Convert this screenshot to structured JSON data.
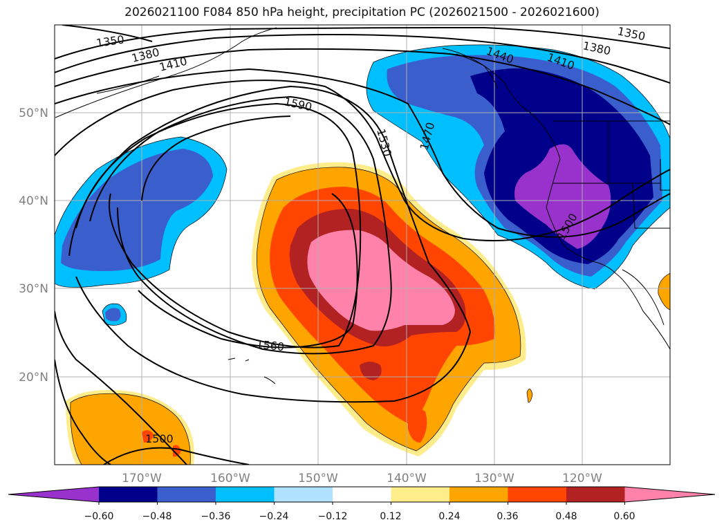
{
  "title": "2026021100 F084 850 hPa height, precipitation PC (2026021500 - 2026021600)",
  "lat_labels": [
    "50°N",
    "40°N",
    "30°N",
    "20°N"
  ],
  "lon_labels": [
    "170°W",
    "160°W",
    "150°W",
    "140°W",
    "130°W",
    "120°W"
  ],
  "contour_labels": [
    "1350",
    "1380",
    "1410",
    "1440",
    "1470",
    "1500",
    "1530",
    "1560",
    "1590"
  ],
  "colorbar": {
    "ticks": [
      "−0.60",
      "−0.48",
      "−0.36",
      "−0.24",
      "−0.12",
      "0.12",
      "0.24",
      "0.36",
      "0.48",
      "0.60"
    ],
    "colors": [
      "#9932cc",
      "#00008b",
      "#3a5fcd",
      "#00bfff",
      "#b0e2ff",
      "#ffffff",
      "#ffec8b",
      "#ffa500",
      "#ff4500",
      "#b22222",
      "#ff82ab"
    ]
  }
}
